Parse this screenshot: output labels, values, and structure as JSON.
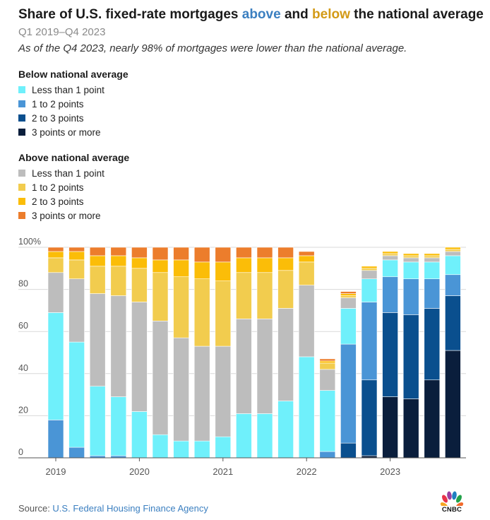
{
  "header": {
    "title_prefix": "Share of U.S. fixed-rate mortgages ",
    "title_above": "above",
    "title_middle": " and ",
    "title_below": "below",
    "title_suffix": " the national average",
    "subtitle": "Q1 2019–Q4 2023",
    "note": "As of the Q4 2023, nearly 98% of mortgages were lower than the national average."
  },
  "legend": {
    "below": {
      "heading": "Below national average",
      "items": [
        {
          "label": "Less than 1 point",
          "color": "#6ff0fb"
        },
        {
          "label": "1 to 2 points",
          "color": "#4a95d6"
        },
        {
          "label": "2 to 3 points",
          "color": "#0a4f8e"
        },
        {
          "label": "3 points or more",
          "color": "#0a1e3c"
        }
      ]
    },
    "above": {
      "heading": "Above national average",
      "items": [
        {
          "label": "Less than 1 point",
          "color": "#bdbdbd"
        },
        {
          "label": "1 to 2 points",
          "color": "#f2cc4e"
        },
        {
          "label": "2 to 3 points",
          "color": "#fbbd08"
        },
        {
          "label": "3 points or more",
          "color": "#ec7d2c"
        }
      ]
    }
  },
  "chart_data": {
    "type": "bar",
    "stacked": true,
    "ylim": [
      0,
      100
    ],
    "y_ticks": [
      "0",
      "20",
      "40",
      "60",
      "80",
      "100%"
    ],
    "x_tick_labels": [
      "2019",
      "2020",
      "2021",
      "2022",
      "2023"
    ],
    "grid": true,
    "categories": [
      "Q1 2019",
      "Q2 2019",
      "Q3 2019",
      "Q4 2019",
      "Q1 2020",
      "Q2 2020",
      "Q3 2020",
      "Q4 2020",
      "Q1 2021",
      "Q2 2021",
      "Q3 2021",
      "Q4 2021",
      "Q1 2022",
      "Q2 2022",
      "Q3 2022",
      "Q4 2022",
      "Q1 2023",
      "Q2 2023",
      "Q3 2023",
      "Q4 2023"
    ],
    "series": [
      {
        "name": "Below: 3 points or more",
        "color": "#0a1e3c",
        "values": [
          0,
          0,
          0,
          0,
          0,
          0,
          0,
          0,
          0,
          0,
          0,
          0,
          0,
          0,
          0,
          1,
          29,
          28,
          37,
          51
        ]
      },
      {
        "name": "Below: 2 to 3 points",
        "color": "#0a4f8e",
        "values": [
          0,
          0,
          0,
          0,
          0,
          0,
          0,
          0,
          0,
          0,
          0,
          0,
          0,
          0,
          7,
          36,
          40,
          40,
          34,
          26
        ]
      },
      {
        "name": "Below: 1 to 2 points",
        "color": "#4a95d6",
        "values": [
          18,
          5,
          1,
          1,
          0,
          0,
          0,
          0,
          0,
          0,
          0,
          0,
          0,
          3,
          47,
          37,
          17,
          17,
          14,
          10
        ]
      },
      {
        "name": "Below: Less than 1 point",
        "color": "#6ff0fb",
        "values": [
          51,
          50,
          33,
          28,
          22,
          11,
          8,
          8,
          10,
          21,
          21,
          27,
          48,
          29,
          17,
          11,
          8,
          8,
          8,
          9
        ]
      },
      {
        "name": "Above: Less than 1 point",
        "color": "#bdbdbd",
        "values": [
          19,
          30,
          44,
          48,
          52,
          54,
          49,
          45,
          43,
          45,
          45,
          44,
          34,
          10,
          5,
          4,
          2,
          2,
          2,
          2
        ]
      },
      {
        "name": "Above: 1 to 2 points",
        "color": "#f2cc4e",
        "values": [
          7,
          9,
          13,
          14,
          16,
          23,
          29,
          32,
          31,
          22,
          22,
          18,
          11,
          3,
          1,
          1,
          1,
          1,
          1,
          1
        ]
      },
      {
        "name": "Above: 2 to 3 points",
        "color": "#fbbd08",
        "values": [
          3,
          4,
          5,
          5,
          5,
          6,
          8,
          8,
          9,
          7,
          7,
          6,
          3,
          1,
          1,
          1,
          1,
          1,
          1,
          1
        ]
      },
      {
        "name": "Above: 3 points or more",
        "color": "#ec7d2c",
        "values": [
          2,
          2,
          4,
          4,
          5,
          6,
          6,
          7,
          7,
          5,
          5,
          5,
          2,
          1,
          1,
          0,
          0,
          0,
          0,
          0
        ]
      }
    ],
    "colors": {
      "grid": "#d9d9d9",
      "axis": "#555555",
      "tick_text": "#555555"
    }
  },
  "footer": {
    "source_prefix": "Source: ",
    "source_agency": "U.S. Federal Housing Finance Agency",
    "logo_text": "CNBC"
  }
}
